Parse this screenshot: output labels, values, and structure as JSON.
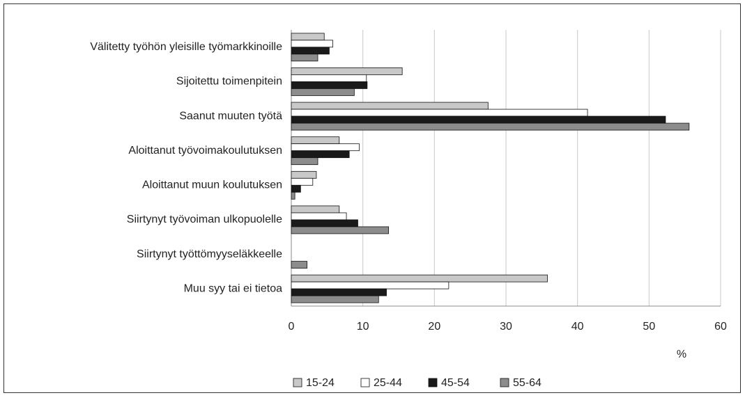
{
  "chart_data": {
    "type": "barh",
    "categories": [
      "Välitetty työhön yleisille työmarkkinoille",
      "Sijoitettu toimenpitein",
      "Saanut muuten työtä",
      "Aloittanut työvoimakoulutuksen",
      "Aloittanut muun koulutuksen",
      "Siirtynyt työvoiman ulkopuolelle",
      "Siirtynyt työttömyyseläkkeelle",
      "Muu syy tai ei tietoa"
    ],
    "series": [
      {
        "name": "15-24",
        "color": "#c8c8c8",
        "values": [
          4.6,
          15.5,
          27.5,
          6.7,
          3.5,
          6.7,
          0,
          35.8
        ]
      },
      {
        "name": "25-44",
        "color": "#ffffff",
        "values": [
          5.8,
          10.5,
          41.4,
          9.5,
          3.0,
          7.7,
          0,
          22.0
        ]
      },
      {
        "name": "45-54",
        "color": "#1a1a1a",
        "values": [
          5.3,
          10.6,
          52.3,
          8.1,
          1.3,
          9.3,
          0,
          13.3
        ]
      },
      {
        "name": "55-64",
        "color": "#8c8c8c",
        "values": [
          3.7,
          8.8,
          55.6,
          3.7,
          0.5,
          13.6,
          2.2,
          12.2
        ]
      }
    ],
    "x_label": "%",
    "xlim": [
      0,
      60
    ],
    "xticks": [
      0,
      10,
      20,
      30,
      40,
      50,
      60
    ],
    "grid": true,
    "legend": "bottom"
  }
}
